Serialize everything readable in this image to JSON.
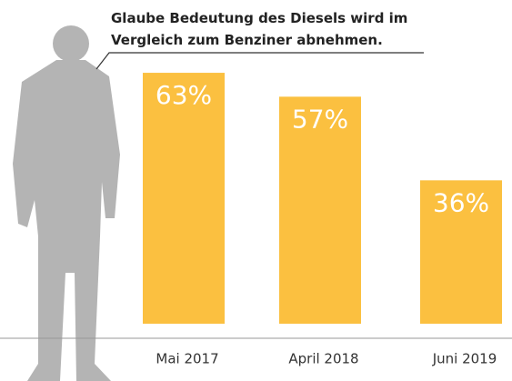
{
  "chart_data": {
    "type": "bar",
    "title": "Glaube Bedeutung des Diesels wird im Vergleich zum Benziner abnehmen.",
    "categories": [
      "Mai 2017",
      "April 2018",
      "Juni 2019"
    ],
    "values": [
      63,
      57,
      36
    ],
    "value_labels": [
      "63%",
      "57%",
      "36%"
    ],
    "color": "#fbc040"
  }
}
